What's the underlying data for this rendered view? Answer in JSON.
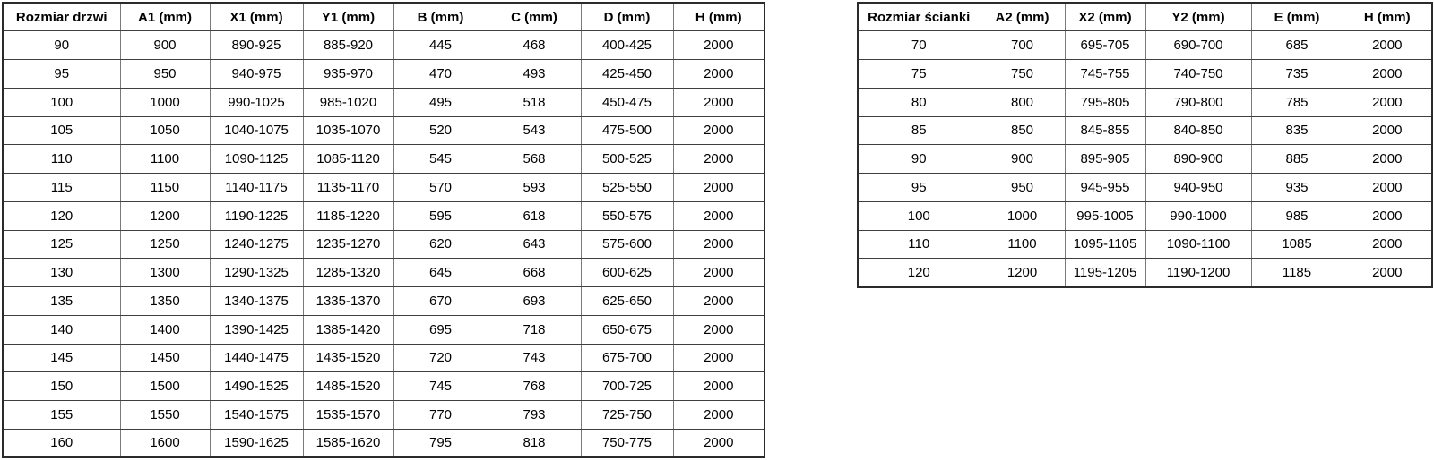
{
  "colors": {
    "background": "#ffffff",
    "text": "#000000",
    "outer_border": "#2b2b2b",
    "inner_border_vertical": "#7a7a7a",
    "inner_border_horizontal": "#3f3f3f"
  },
  "door_table": {
    "headers": [
      "Rozmiar drzwi",
      "A1 (mm)",
      "X1 (mm)",
      "Y1 (mm)",
      "B (mm)",
      "C (mm)",
      "D (mm)",
      "H (mm)"
    ],
    "rows": [
      [
        "90",
        "900",
        "890-925",
        "885-920",
        "445",
        "468",
        "400-425",
        "2000"
      ],
      [
        "95",
        "950",
        "940-975",
        "935-970",
        "470",
        "493",
        "425-450",
        "2000"
      ],
      [
        "100",
        "1000",
        "990-1025",
        "985-1020",
        "495",
        "518",
        "450-475",
        "2000"
      ],
      [
        "105",
        "1050",
        "1040-1075",
        "1035-1070",
        "520",
        "543",
        "475-500",
        "2000"
      ],
      [
        "110",
        "1100",
        "1090-1125",
        "1085-1120",
        "545",
        "568",
        "500-525",
        "2000"
      ],
      [
        "115",
        "1150",
        "1140-1175",
        "1135-1170",
        "570",
        "593",
        "525-550",
        "2000"
      ],
      [
        "120",
        "1200",
        "1190-1225",
        "1185-1220",
        "595",
        "618",
        "550-575",
        "2000"
      ],
      [
        "125",
        "1250",
        "1240-1275",
        "1235-1270",
        "620",
        "643",
        "575-600",
        "2000"
      ],
      [
        "130",
        "1300",
        "1290-1325",
        "1285-1320",
        "645",
        "668",
        "600-625",
        "2000"
      ],
      [
        "135",
        "1350",
        "1340-1375",
        "1335-1370",
        "670",
        "693",
        "625-650",
        "2000"
      ],
      [
        "140",
        "1400",
        "1390-1425",
        "1385-1420",
        "695",
        "718",
        "650-675",
        "2000"
      ],
      [
        "145",
        "1450",
        "1440-1475",
        "1435-1520",
        "720",
        "743",
        "675-700",
        "2000"
      ],
      [
        "150",
        "1500",
        "1490-1525",
        "1485-1520",
        "745",
        "768",
        "700-725",
        "2000"
      ],
      [
        "155",
        "1550",
        "1540-1575",
        "1535-1570",
        "770",
        "793",
        "725-750",
        "2000"
      ],
      [
        "160",
        "1600",
        "1590-1625",
        "1585-1620",
        "795",
        "818",
        "750-775",
        "2000"
      ]
    ]
  },
  "wall_table": {
    "headers": [
      "Rozmiar ścianki",
      "A2 (mm)",
      "X2 (mm)",
      "Y2 (mm)",
      "E (mm)",
      "H (mm)"
    ],
    "rows": [
      [
        "70",
        "700",
        "695-705",
        "690-700",
        "685",
        "2000"
      ],
      [
        "75",
        "750",
        "745-755",
        "740-750",
        "735",
        "2000"
      ],
      [
        "80",
        "800",
        "795-805",
        "790-800",
        "785",
        "2000"
      ],
      [
        "85",
        "850",
        "845-855",
        "840-850",
        "835",
        "2000"
      ],
      [
        "90",
        "900",
        "895-905",
        "890-900",
        "885",
        "2000"
      ],
      [
        "95",
        "950",
        "945-955",
        "940-950",
        "935",
        "2000"
      ],
      [
        "100",
        "1000",
        "995-1005",
        "990-1000",
        "985",
        "2000"
      ],
      [
        "110",
        "1100",
        "1095-1105",
        "1090-1100",
        "1085",
        "2000"
      ],
      [
        "120",
        "1200",
        "1195-1205",
        "1190-1200",
        "1185",
        "2000"
      ]
    ]
  }
}
